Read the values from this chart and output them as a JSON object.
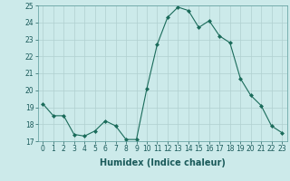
{
  "x": [
    0,
    1,
    2,
    3,
    4,
    5,
    6,
    7,
    8,
    9,
    10,
    11,
    12,
    13,
    14,
    15,
    16,
    17,
    18,
    19,
    20,
    21,
    22,
    23
  ],
  "y": [
    19.2,
    18.5,
    18.5,
    17.4,
    17.3,
    17.6,
    18.2,
    17.9,
    17.1,
    17.1,
    20.1,
    22.7,
    24.3,
    24.9,
    24.7,
    23.7,
    24.1,
    23.2,
    22.8,
    20.7,
    19.7,
    19.1,
    17.9,
    17.5
  ],
  "line_color": "#1a6b5a",
  "marker_color": "#1a6b5a",
  "bg_color": "#cceaea",
  "grid_color": "#b0d0d0",
  "xlabel": "Humidex (Indice chaleur)",
  "ylim": [
    17,
    25
  ],
  "xlim_min": -0.5,
  "xlim_max": 23.5,
  "yticks": [
    17,
    18,
    19,
    20,
    21,
    22,
    23,
    24,
    25
  ],
  "xticks": [
    0,
    1,
    2,
    3,
    4,
    5,
    6,
    7,
    8,
    9,
    10,
    11,
    12,
    13,
    14,
    15,
    16,
    17,
    18,
    19,
    20,
    21,
    22,
    23
  ],
  "tick_fontsize": 5.5,
  "xlabel_fontsize": 7.0
}
